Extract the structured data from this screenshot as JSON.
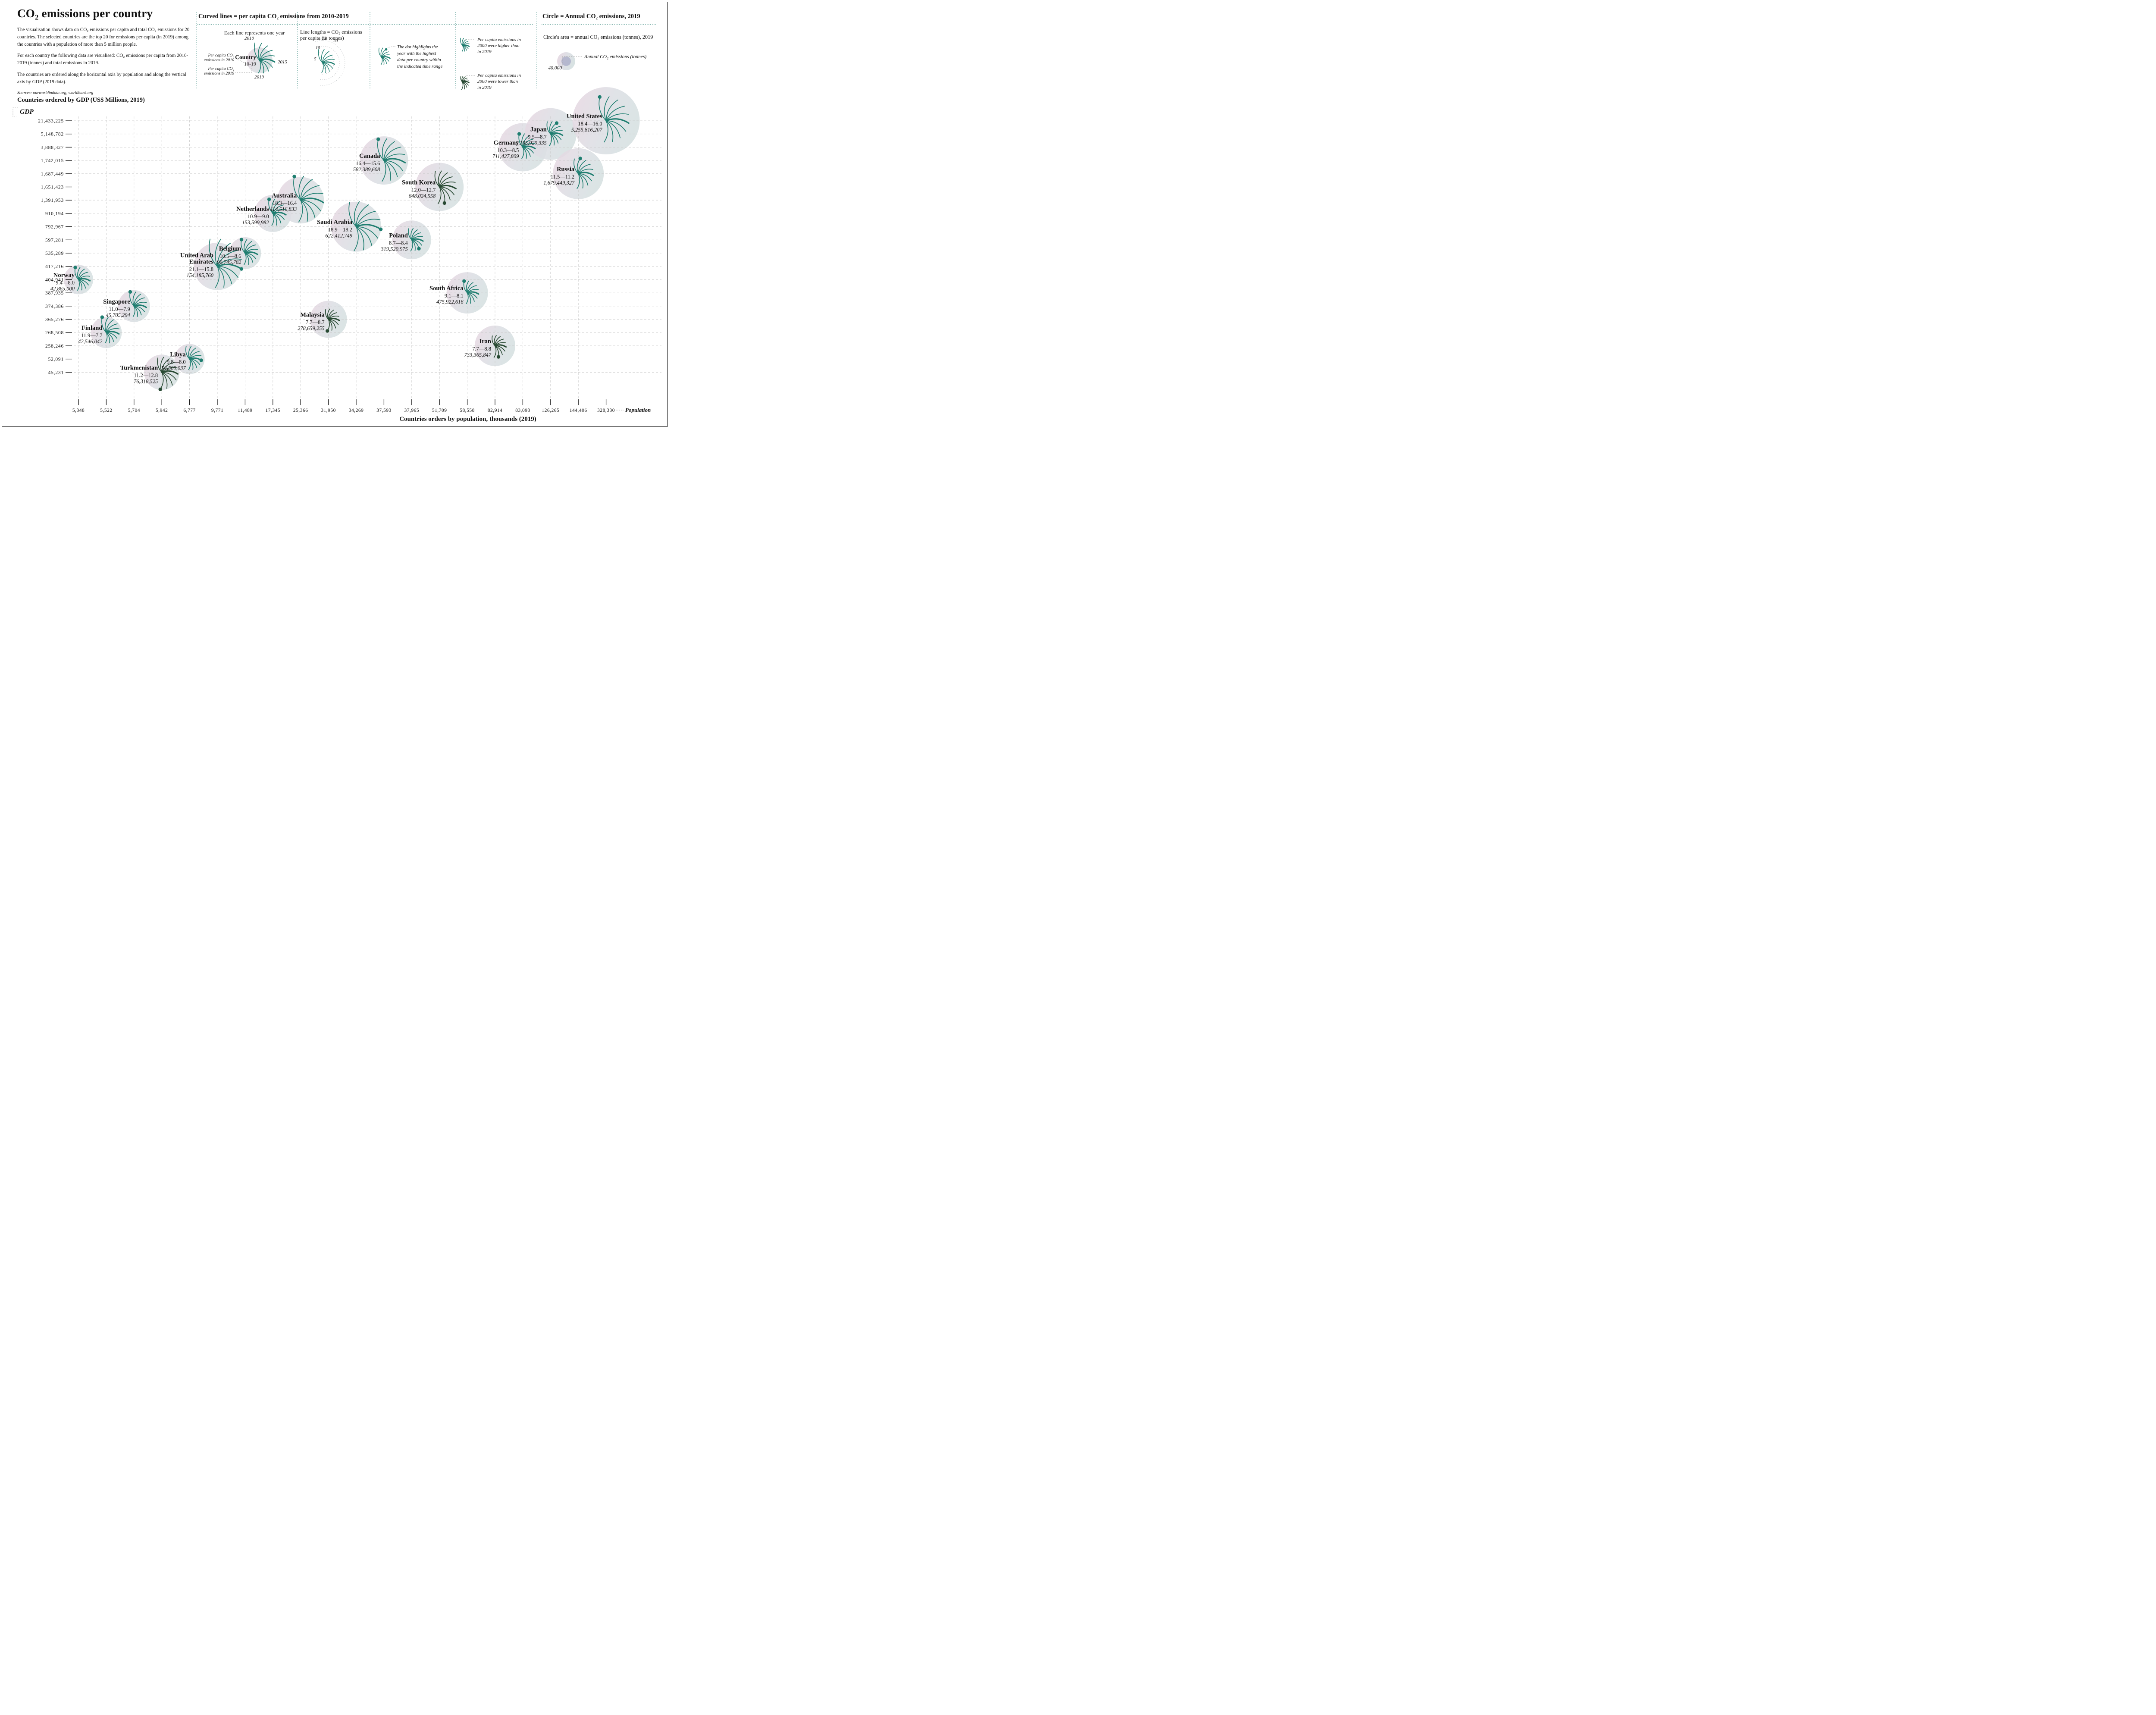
{
  "colors": {
    "teal_line": "#1f7e70",
    "dark_line": "#284a33",
    "total_text": "#86b2ac",
    "grid": "#c9c9c9",
    "dotted_connector": "#a8a8a8",
    "separator_teal": "#3d8b80",
    "circle_gradient_start": "#e8d7e2",
    "circle_gradient_end": "#d6e0e1",
    "inner_circle": "#9397bb",
    "ink": "#111111"
  },
  "header": {
    "title": "CO₂ emissions per country",
    "p1": "The visualisation shows data on CO₂ emissions per capita and total CO₂ emissions for 20 countries. The selected countries are the top 20 for emissions per capita (in 2019) among the countries with a population of more than 5 million people.",
    "p2": "For each country the following data are visualised: CO₂ emissions per capita from 2010-2019 (tonnes) and total emissions in 2019.",
    "p3": "The countries are ordered along the horizontal axis by population and along the vertical axis by GDP (2019 data).",
    "sources": "Sources: ourworldindata.org, worldbank.org"
  },
  "legend_lines": {
    "title": "Curved lines = per capita CO₂ emissions from 2010-2019",
    "each_line": {
      "caption": "Each line represents one year",
      "country_label": "Country",
      "country_sub": "10-19",
      "year_top": "2010",
      "year_mid": "2015",
      "year_bottom": "2019",
      "ann_2010": [
        "Per capita CO₂",
        "emissions in 2010"
      ],
      "ann_2019": [
        "Per capita CO₂",
        "emissions in 2019"
      ],
      "values": [
        14,
        13.5,
        13,
        12.5,
        12.1,
        11.7,
        11.3,
        10.8,
        10.3,
        9.8
      ]
    },
    "line_lengths": {
      "caption": [
        "Line lengths = CO₂ emissions",
        "per capita (in tonnes)"
      ],
      "arc_values": [
        5,
        10,
        15,
        20
      ],
      "arc_labels": [
        "5",
        "10",
        "15",
        "20"
      ],
      "values": [
        13,
        12.4,
        11.9,
        11.4,
        11,
        10.6,
        10.2,
        9.7,
        9.2,
        8.8
      ]
    },
    "dot_note": {
      "text_lines": [
        "The dot highlights the",
        "year with the highest",
        "data per country within",
        "the indicated time range"
      ],
      "values": [
        8,
        7.8,
        7.6,
        7.4,
        7.2,
        7,
        6.8,
        6.6,
        6.4,
        6.2
      ],
      "highlight": 2
    },
    "color_note": {
      "higher": {
        "lines": [
          "Per capita emissions in",
          "2000 were higher than",
          "in 2019"
        ],
        "values": [
          7,
          6.7,
          6.4,
          6.2,
          6,
          5.8,
          5.6,
          5.4,
          5.2,
          5
        ]
      },
      "lower": {
        "lines": [
          "Per capita emissions in",
          "2000 were lower than",
          "in 2019"
        ],
        "values": [
          5,
          5.2,
          5.4,
          5.6,
          5.8,
          6,
          6.2,
          6.4,
          6.7,
          7
        ]
      }
    }
  },
  "legend_circle": {
    "title": "Circle = Annual CO₂ emissions, 2019",
    "subtitle": "Circle's area = annual CO₂ emissions (tonnes), 2019",
    "example_value": "40,000",
    "example_label": "Annual CO₂ emissions (tonnes)"
  },
  "chart_data": {
    "type": "scatter",
    "x_axis": {
      "label": "Population",
      "title": "Countries orders by population, thousands (2019)",
      "ticks": [
        "5,348",
        "5,522",
        "5,704",
        "5,942",
        "6,777",
        "9,771",
        "11,489",
        "17,345",
        "25,366",
        "31,950",
        "34,269",
        "37,593",
        "37,965",
        "51,709",
        "58,558",
        "82,914",
        "83,093",
        "126,265",
        "144,406",
        "328,330"
      ]
    },
    "y_axis": {
      "header": "Countries ordered by GDP (US$ Millions, 2019)",
      "label": "GDP",
      "ticks": [
        "21,433,225",
        "5,148,782",
        "3,888,327",
        "1,742,015",
        "1,687,449",
        "1,651,423",
        "1,391,953",
        "910,194",
        "792,967",
        "597,281",
        "535,289",
        "417,216",
        "404,941",
        "387,935",
        "374,386",
        "365,276",
        "268,508",
        "258,246",
        "52,091",
        "45,231"
      ]
    },
    "countries": [
      {
        "name": "Norway",
        "name_lines": [
          "Norway"
        ],
        "population_thousands": "5,348",
        "gdp_musd": "404,941",
        "per_capita_2010": 9.4,
        "per_capita_2019": 8.0,
        "range_label": "9.4—8.0",
        "total_2019": "42,865,000",
        "palette": "teal",
        "col": 0,
        "row": 12,
        "radius": 34,
        "highlight": 0
      },
      {
        "name": "Finland",
        "name_lines": [
          "Finland"
        ],
        "population_thousands": "5,522",
        "gdp_musd": "268,508",
        "per_capita_2010": 11.9,
        "per_capita_2019": 7.7,
        "range_label": "11.9—7.7",
        "total_2019": "42,546,042",
        "palette": "teal",
        "col": 1,
        "row": 16,
        "radius": 36,
        "highlight": 0
      },
      {
        "name": "Singapore",
        "name_lines": [
          "Singapore"
        ],
        "population_thousands": "5,704",
        "gdp_musd": "374,386",
        "per_capita_2010": 11.0,
        "per_capita_2019": 7.9,
        "range_label": "11.0—7.9",
        "total_2019": "45,705,294",
        "palette": "teal",
        "col": 2,
        "row": 14,
        "radius": 37,
        "highlight": 0
      },
      {
        "name": "Turkmenistan",
        "name_lines": [
          "Turkmenistan"
        ],
        "population_thousands": "5,942",
        "gdp_musd": "45,231",
        "per_capita_2010": 11.2,
        "per_capita_2019": 12.8,
        "range_label": "11.2—12.8",
        "total_2019": "76,318,525",
        "palette": "dark",
        "col": 3,
        "row": 19,
        "radius": 41,
        "highlight": 9
      },
      {
        "name": "Libya",
        "name_lines": [
          "Libya"
        ],
        "population_thousands": "6,777",
        "gdp_musd": "52,091",
        "per_capita_2010": 9.8,
        "per_capita_2019": 8.0,
        "range_label": "9.8—8.0",
        "total_2019": "54,509,037",
        "palette": "teal",
        "col": 4,
        "row": 18,
        "radius": 35,
        "highlight": 5
      },
      {
        "name": "United Arab Emirates",
        "name_lines": [
          "United Arab",
          "Emirates"
        ],
        "population_thousands": "9,771",
        "gdp_musd": "417,216",
        "per_capita_2010": 21.1,
        "per_capita_2019": 15.8,
        "range_label": "21.1—15.8",
        "total_2019": "154,185,760",
        "palette": "teal",
        "col": 5,
        "row": 11,
        "radius": 55,
        "highlight": 5
      },
      {
        "name": "Belgium",
        "name_lines": [
          "Belgium"
        ],
        "population_thousands": "11,489",
        "gdp_musd": "535,289",
        "per_capita_2010": 10.5,
        "per_capita_2019": 8.6,
        "range_label": "10.5—8.6",
        "total_2019": "99,745,782",
        "palette": "teal",
        "col": 6,
        "row": 10,
        "radius": 37,
        "highlight": 0
      },
      {
        "name": "Netherlands",
        "name_lines": [
          "Netherlands"
        ],
        "population_thousands": "17,345",
        "gdp_musd": "910,194",
        "per_capita_2010": 10.9,
        "per_capita_2019": 9.0,
        "range_label": "10.9—9.0",
        "total_2019": "153,599,982",
        "palette": "teal",
        "col": 7,
        "row": 7,
        "radius": 43,
        "highlight": 0
      },
      {
        "name": "Australia",
        "name_lines": [
          "Australia"
        ],
        "population_thousands": "25,366",
        "gdp_musd": "1,391,953",
        "per_capita_2010": 18.3,
        "per_capita_2019": 16.4,
        "range_label": "18.3—16.4",
        "total_2019": "414,516,833",
        "palette": "teal",
        "col": 8,
        "row": 6,
        "radius": 54,
        "highlight": 0
      },
      {
        "name": "Malaysia",
        "name_lines": [
          "Malaysia"
        ],
        "population_thousands": "31,950",
        "gdp_musd": "365,276",
        "per_capita_2010": 7.7,
        "per_capita_2019": 8.7,
        "range_label": "7.7—8.7",
        "total_2019": "278,659,255",
        "palette": "dark",
        "col": 9,
        "row": 15,
        "radius": 43,
        "highlight": 9
      },
      {
        "name": "Saudi Arabia",
        "name_lines": [
          "Saudi Arabia"
        ],
        "population_thousands": "34,269",
        "gdp_musd": "792,967",
        "per_capita_2010": 18.9,
        "per_capita_2019": 18.2,
        "range_label": "18.9—18.2",
        "total_2019": "622,412,749",
        "palette": "teal",
        "col": 10,
        "row": 8,
        "radius": 58,
        "highlight": 5
      },
      {
        "name": "Canada",
        "name_lines": [
          "Canada"
        ],
        "population_thousands": "37,593",
        "gdp_musd": "1,742,015",
        "per_capita_2010": 16.4,
        "per_capita_2019": 15.6,
        "range_label": "16.4—15.6",
        "total_2019": "582,389,608",
        "palette": "teal",
        "col": 11,
        "row": 3,
        "radius": 56,
        "highlight": 0
      },
      {
        "name": "Poland",
        "name_lines": [
          "Poland"
        ],
        "population_thousands": "37,965",
        "gdp_musd": "597,281",
        "per_capita_2010": 8.7,
        "per_capita_2019": 8.4,
        "range_label": "8.7—8.4",
        "total_2019": "319,520,975",
        "palette": "teal",
        "col": 12,
        "row": 9,
        "radius": 45,
        "highlight": 7
      },
      {
        "name": "South Korea",
        "name_lines": [
          "South Korea"
        ],
        "population_thousands": "51,709",
        "gdp_musd": "1,651,423",
        "per_capita_2010": 12.0,
        "per_capita_2019": 12.7,
        "range_label": "12.0—12.7",
        "total_2019": "648,024,558",
        "palette": "dark",
        "col": 13,
        "row": 5,
        "radius": 56,
        "highlight": 8
      },
      {
        "name": "South Africa",
        "name_lines": [
          "South Africa"
        ],
        "population_thousands": "58,558",
        "gdp_musd": "387,935",
        "per_capita_2010": 9.1,
        "per_capita_2019": 8.1,
        "range_label": "9.1—8.1",
        "total_2019": "475,922,616",
        "palette": "teal",
        "col": 14,
        "row": 13,
        "radius": 48,
        "highlight": 0
      },
      {
        "name": "Iran",
        "name_lines": [
          "Iran"
        ],
        "population_thousands": "82,914",
        "gdp_musd": "258,246",
        "per_capita_2010": 7.7,
        "per_capita_2019": 8.8,
        "range_label": "7.7—8.8",
        "total_2019": "733,365,847",
        "palette": "dark",
        "col": 15,
        "row": 17,
        "radius": 47,
        "highlight": 8
      },
      {
        "name": "Germany",
        "name_lines": [
          "Germany"
        ],
        "population_thousands": "83,093",
        "gdp_musd": "3,888,327",
        "per_capita_2010": 10.3,
        "per_capita_2019": 8.5,
        "range_label": "10.3—8.5",
        "total_2019": "711,427,809",
        "palette": "teal",
        "col": 16,
        "row": 2,
        "radius": 56,
        "highlight": 0
      },
      {
        "name": "Japan",
        "name_lines": [
          "Japan"
        ],
        "population_thousands": "126,265",
        "gdp_musd": "5,148,782",
        "per_capita_2010": 9.5,
        "per_capita_2019": 8.7,
        "range_label": "9.5—8.7",
        "total_2019": "1,105,929,335",
        "palette": "teal",
        "col": 17,
        "row": 1,
        "radius": 60,
        "highlight": 2
      },
      {
        "name": "Russia",
        "name_lines": [
          "Russia"
        ],
        "population_thousands": "144,406",
        "gdp_musd": "1,687,449",
        "per_capita_2010": 11.5,
        "per_capita_2019": 11.2,
        "range_label": "11.5—11.2",
        "total_2019": "1,679,449,327",
        "palette": "teal",
        "col": 18,
        "row": 4,
        "radius": 59,
        "highlight": 1
      },
      {
        "name": "United States",
        "name_lines": [
          "United States"
        ],
        "population_thousands": "328,330",
        "gdp_musd": "21,433,225",
        "per_capita_2010": 18.4,
        "per_capita_2019": 16.0,
        "range_label": "18.4—16.0",
        "total_2019": "5,255,816,207",
        "palette": "teal",
        "col": 19,
        "row": 0,
        "radius": 78,
        "highlight": 0
      }
    ]
  }
}
